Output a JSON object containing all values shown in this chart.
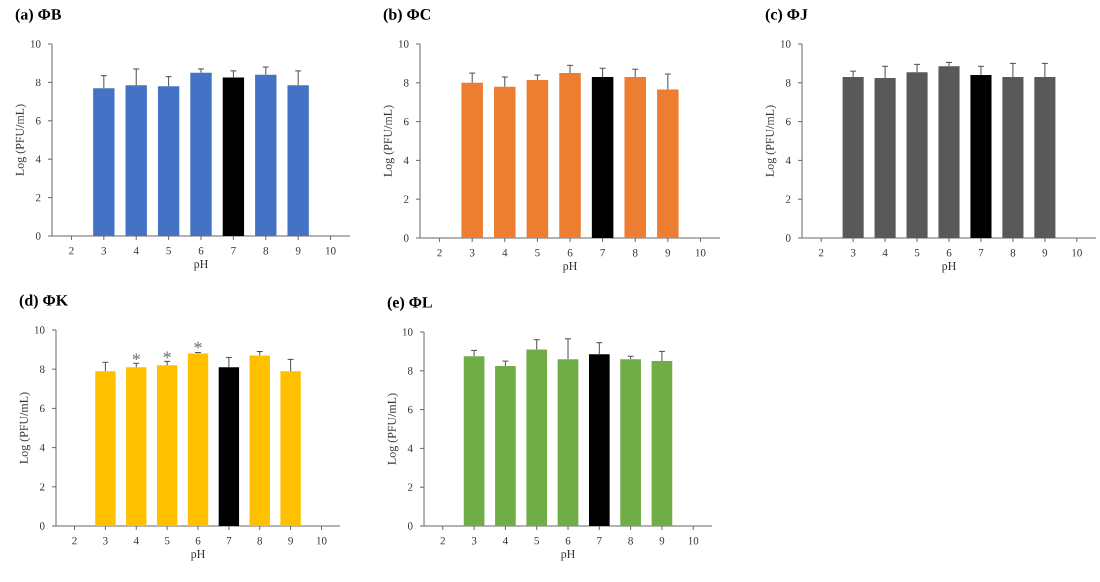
{
  "chart_data": [
    {
      "type": "bar",
      "title": "(a) ΦB",
      "xlabel": "pH",
      "ylabel": "Log (PFU/mL)",
      "categories": [
        "2",
        "3",
        "4",
        "5",
        "6",
        "7",
        "8",
        "9",
        "10"
      ],
      "values": [
        null,
        7.7,
        7.85,
        7.8,
        8.5,
        8.25,
        8.4,
        7.85,
        null
      ],
      "colors": [
        null,
        "#4472c4",
        "#4472c4",
        "#4472c4",
        "#4472c4",
        "#000000",
        "#4472c4",
        "#4472c4",
        null
      ],
      "errors": [
        null,
        [
          7.7,
          8.35
        ],
        [
          7.85,
          8.7
        ],
        [
          7.8,
          8.3
        ],
        [
          8.5,
          8.7
        ],
        [
          8.25,
          8.6
        ],
        [
          8.4,
          8.8
        ],
        [
          7.85,
          8.6
        ],
        null
      ],
      "ylim": [
        0,
        10
      ],
      "yticks": [
        0,
        2,
        4,
        6,
        8,
        10
      ]
    },
    {
      "type": "bar",
      "title": "(b) ΦC",
      "xlabel": "pH",
      "ylabel": "Log (PFU/mL)",
      "categories": [
        "2",
        "3",
        "4",
        "5",
        "6",
        "7",
        "8",
        "9",
        "10"
      ],
      "values": [
        null,
        8.0,
        7.8,
        8.15,
        8.5,
        8.3,
        8.3,
        7.65,
        null
      ],
      "colors": [
        null,
        "#ed7d31",
        "#ed7d31",
        "#ed7d31",
        "#ed7d31",
        "#000000",
        "#ed7d31",
        "#ed7d31",
        null
      ],
      "errors": [
        null,
        [
          8.0,
          8.5
        ],
        [
          7.8,
          8.3
        ],
        [
          8.15,
          8.4
        ],
        [
          8.5,
          8.9
        ],
        [
          8.3,
          8.75
        ],
        [
          8.3,
          8.7
        ],
        [
          7.65,
          8.45
        ],
        null
      ],
      "ylim": [
        0,
        10
      ],
      "yticks": [
        0,
        2,
        4,
        6,
        8,
        10
      ]
    },
    {
      "type": "bar",
      "title": "(c) ΦJ",
      "xlabel": "pH",
      "ylabel": "Log (PFU/mL)",
      "categories": [
        "2",
        "3",
        "4",
        "5",
        "6",
        "7",
        "8",
        "9",
        "10"
      ],
      "values": [
        null,
        8.3,
        8.25,
        8.55,
        8.85,
        8.4,
        8.3,
        8.3,
        null
      ],
      "colors": [
        null,
        "#595959",
        "#595959",
        "#595959",
        "#595959",
        "#000000",
        "#595959",
        "#595959",
        null
      ],
      "errors": [
        null,
        [
          8.3,
          8.6
        ],
        [
          8.25,
          8.85
        ],
        [
          8.55,
          8.95
        ],
        [
          8.85,
          9.05
        ],
        [
          8.4,
          8.85
        ],
        [
          8.3,
          9.0
        ],
        [
          8.3,
          9.0
        ],
        null
      ],
      "ylim": [
        0,
        10
      ],
      "yticks": [
        0,
        2,
        4,
        6,
        8,
        10
      ]
    },
    {
      "type": "bar",
      "title": "(d) ΦK",
      "xlabel": "pH",
      "ylabel": "Log (PFU/mL)",
      "categories": [
        "2",
        "3",
        "4",
        "5",
        "6",
        "7",
        "8",
        "9",
        "10"
      ],
      "values": [
        null,
        7.9,
        8.1,
        8.2,
        8.8,
        8.1,
        8.7,
        7.9,
        null
      ],
      "colors": [
        null,
        "#ffc000",
        "#ffc000",
        "#ffc000",
        "#ffc000",
        "#000000",
        "#ffc000",
        "#ffc000",
        null
      ],
      "errors": [
        null,
        [
          7.9,
          8.35
        ],
        [
          8.1,
          8.3
        ],
        [
          8.2,
          8.4
        ],
        [
          8.8,
          8.85
        ],
        [
          8.1,
          8.6
        ],
        [
          8.7,
          8.9
        ],
        [
          7.9,
          8.5
        ],
        null
      ],
      "ylim": [
        0,
        10
      ],
      "yticks": [
        0,
        2,
        4,
        6,
        8,
        10
      ],
      "annotations": [
        {
          "text": "*",
          "x": "4",
          "y": 8.5
        },
        {
          "text": "*",
          "x": "5",
          "y": 8.6
        },
        {
          "text": "*",
          "x": "6",
          "y": 9.1
        }
      ]
    },
    {
      "type": "bar",
      "title": "(e) ΦL",
      "xlabel": "pH",
      "ylabel": "Log (PFU/mL)",
      "categories": [
        "2",
        "3",
        "4",
        "5",
        "6",
        "7",
        "8",
        "9",
        "10"
      ],
      "values": [
        null,
        8.75,
        8.25,
        9.1,
        8.6,
        8.85,
        8.6,
        8.5,
        null
      ],
      "colors": [
        null,
        "#70ad47",
        "#70ad47",
        "#70ad47",
        "#70ad47",
        "#000000",
        "#70ad47",
        "#70ad47",
        null
      ],
      "errors": [
        null,
        [
          8.75,
          9.05
        ],
        [
          8.25,
          8.5
        ],
        [
          9.1,
          9.6
        ],
        [
          8.6,
          9.65
        ],
        [
          8.85,
          9.45
        ],
        [
          8.6,
          8.75
        ],
        [
          8.5,
          9.0
        ],
        null
      ],
      "ylim": [
        0,
        10
      ],
      "yticks": [
        0,
        2,
        4,
        6,
        8,
        10
      ]
    }
  ]
}
